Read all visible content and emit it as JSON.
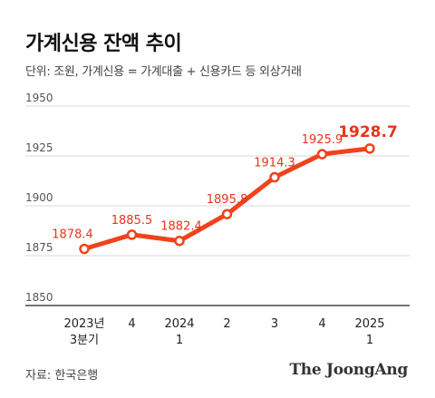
{
  "header": {
    "title": "가계신용 잔액 추이",
    "subtitle": "단위: 조원, 가계신용 = 가계대출 + 신용카드 등 외상거래"
  },
  "footer": {
    "source": "자료: 한국은행",
    "brand": "The JoongAng"
  },
  "colors": {
    "line": "#f0421c",
    "label": "#e8341a",
    "axis": "#222222",
    "grid": "#d9d9d9",
    "tick_text": "#555555"
  },
  "chart_data": {
    "type": "line",
    "title": "가계신용 잔액 추이",
    "xlabel": "",
    "ylabel": "",
    "ylim": [
      1850,
      1950
    ],
    "yticks": [
      1850,
      1875,
      1900,
      1925,
      1950
    ],
    "grid": true,
    "categories": [
      [
        "2023년",
        "3분기"
      ],
      [
        "4"
      ],
      [
        "2024",
        "1"
      ],
      [
        "2"
      ],
      [
        "3"
      ],
      [
        "4"
      ],
      [
        "2025",
        "1"
      ]
    ],
    "series": [
      {
        "values": [
          1878.4,
          1885.5,
          1882.4,
          1895.8,
          1914.3,
          1925.9,
          1928.7
        ],
        "labels": [
          "1878.4",
          "1885.5",
          "1882.4",
          "1895.8",
          "1914.3",
          "1925.9",
          "1928.7"
        ]
      }
    ]
  }
}
